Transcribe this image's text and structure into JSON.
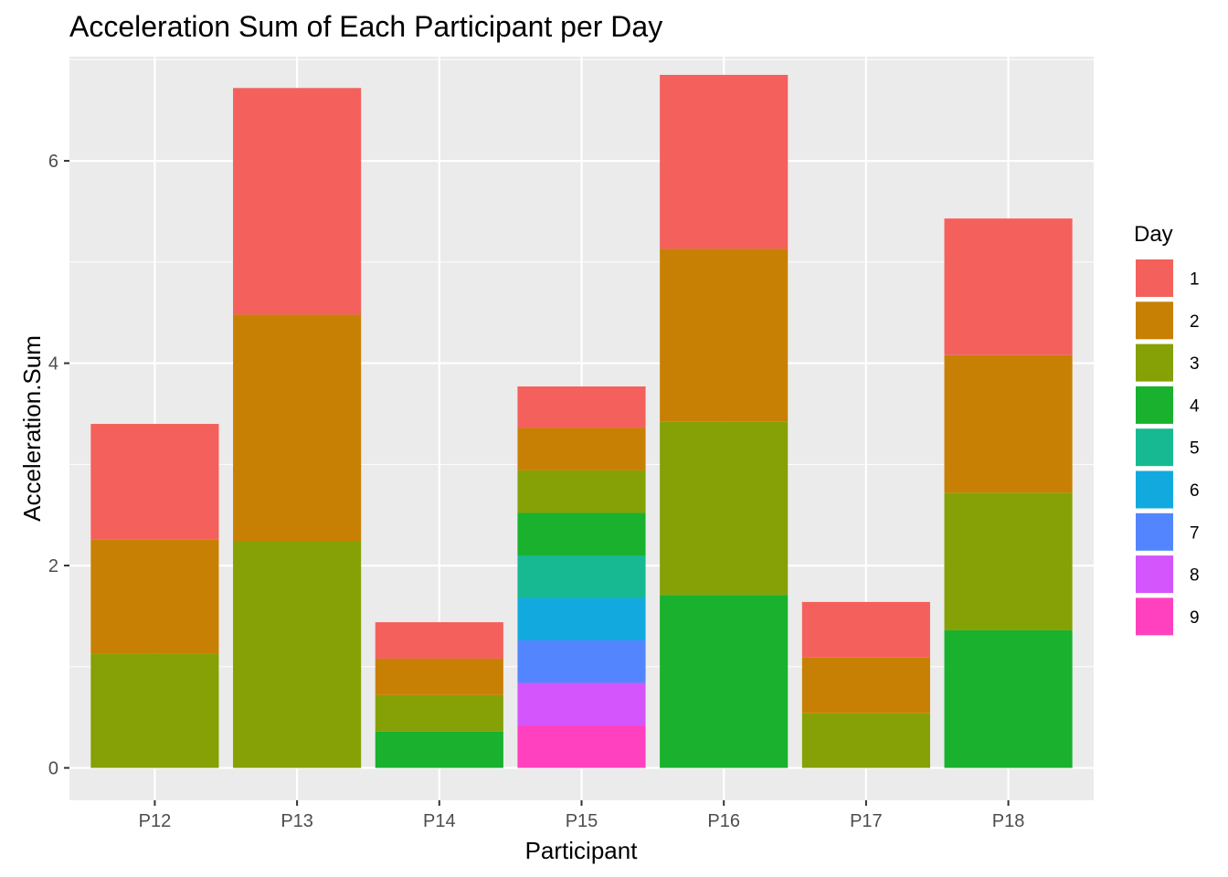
{
  "chart_data": {
    "type": "bar",
    "stacked": true,
    "title": "Acceleration Sum of Each Participant per Day",
    "xlabel": "Participant",
    "ylabel": "Acceleration.Sum",
    "ylim": [
      -0.32,
      7.03
    ],
    "yticks": [
      0,
      2,
      4,
      6
    ],
    "grid": true,
    "legend": {
      "title": "Day",
      "position": "right"
    },
    "categories": [
      "P12",
      "P13",
      "P14",
      "P15",
      "P16",
      "P17",
      "P18"
    ],
    "series": [
      {
        "name": "9",
        "color": "#FF40BF",
        "values": [
          0,
          0,
          0,
          0.42,
          0,
          0,
          0
        ]
      },
      {
        "name": "8",
        "color": "#D455FC",
        "values": [
          0,
          0,
          0,
          0.42,
          0,
          0,
          0
        ]
      },
      {
        "name": "7",
        "color": "#5386FE",
        "values": [
          0,
          0,
          0,
          0.42,
          0,
          0,
          0
        ]
      },
      {
        "name": "6",
        "color": "#12AADE",
        "values": [
          0,
          0,
          0,
          0.42,
          0,
          0,
          0
        ]
      },
      {
        "name": "5",
        "color": "#17B993",
        "values": [
          0,
          0,
          0,
          0.42,
          0,
          0,
          0
        ]
      },
      {
        "name": "4",
        "color": "#19B12E",
        "values": [
          0,
          0,
          0.36,
          0.42,
          1.71,
          0,
          1.36
        ]
      },
      {
        "name": "3",
        "color": "#85A106",
        "values": [
          1.13,
          2.24,
          0.36,
          0.42,
          1.71,
          0.54,
          1.36
        ]
      },
      {
        "name": "2",
        "color": "#C88004",
        "values": [
          1.13,
          2.24,
          0.36,
          0.42,
          1.71,
          0.55,
          1.36
        ]
      },
      {
        "name": "1",
        "color": "#F4605B",
        "values": [
          1.14,
          2.24,
          0.36,
          0.41,
          1.72,
          0.55,
          1.35
        ]
      }
    ],
    "legend_order": [
      "1",
      "2",
      "3",
      "4",
      "5",
      "6",
      "7",
      "8",
      "9"
    ]
  }
}
